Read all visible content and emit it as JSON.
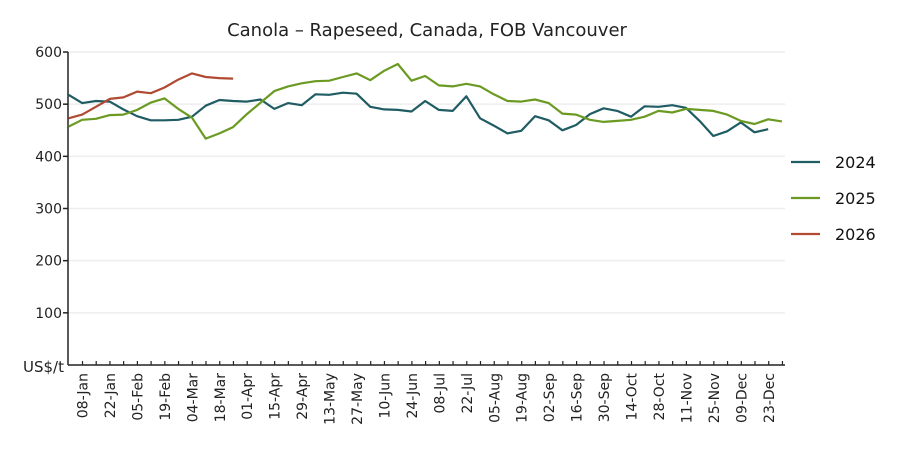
{
  "chart_data": {
    "type": "line",
    "title": "Canola – Rapeseed, Canada, FOB Vancouver",
    "xlabel": "",
    "ylabel": "US$/t",
    "ylim": [
      0,
      600
    ],
    "yticks": [
      100,
      200,
      300,
      400,
      500,
      600
    ],
    "grid": true,
    "legend_position": "right",
    "x_tick_labels": [
      "08-Jan",
      "22-Jan",
      "05-Feb",
      "19-Feb",
      "04-Mar",
      "18-Mar",
      "01-Apr",
      "15-Apr",
      "29-Apr",
      "13-May",
      "27-May",
      "10-Jun",
      "24-Jun",
      "08-Jul",
      "22-Jul",
      "05-Aug",
      "19-Aug",
      "02-Sep",
      "16-Sep",
      "30-Sep",
      "14-Oct",
      "28-Oct",
      "11-Nov",
      "25-Nov",
      "09-Dec",
      "23-Dec"
    ],
    "series": [
      {
        "name": "2024",
        "color": "#1f5c63",
        "values": [
          518,
          502,
          506,
          505,
          490,
          477,
          469,
          469,
          470,
          476,
          497,
          508,
          506,
          505,
          509,
          491,
          502,
          498,
          519,
          518,
          522,
          520,
          495,
          490,
          489,
          486,
          506,
          489,
          487,
          515,
          473,
          459,
          444,
          449,
          477,
          469,
          450,
          460,
          481,
          492,
          487,
          476,
          496,
          495,
          498,
          493,
          468,
          439,
          448,
          465,
          446,
          452
        ]
      },
      {
        "name": "2025",
        "color": "#6b9a23",
        "values": [
          457,
          470,
          472,
          479,
          480,
          489,
          503,
          511,
          491,
          474,
          434,
          444,
          456,
          481,
          503,
          525,
          534,
          540,
          544,
          545,
          552,
          559,
          546,
          564,
          577,
          545,
          554,
          536,
          534,
          539,
          534,
          519,
          506,
          505,
          509,
          502,
          482,
          480,
          470,
          466,
          468,
          470,
          476,
          487,
          484,
          491,
          489,
          487,
          480,
          468,
          462,
          471,
          467
        ]
      },
      {
        "name": "2026",
        "color": "#b04a32",
        "values": [
          473,
          480,
          495,
          510,
          513,
          524,
          521,
          532,
          547,
          559,
          552,
          550,
          549
        ]
      }
    ]
  }
}
